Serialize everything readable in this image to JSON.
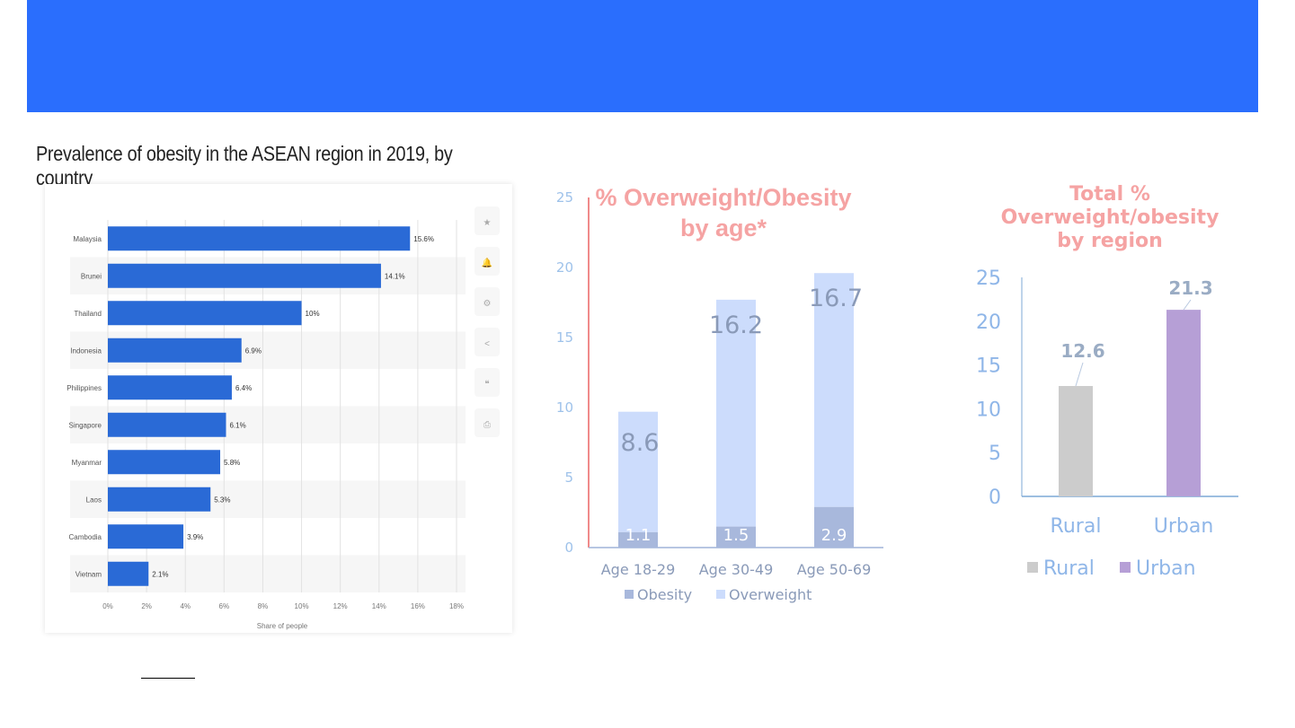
{
  "colors": {
    "banner": "#2a6efd",
    "c1_bar": "#2a6ad6",
    "c2_obesity": "#a8b8dc",
    "c2_overweight": "#ccdcfc",
    "c2_axis": "#f08a8a",
    "c2_tick": "#9ec2ea",
    "c3_rural": "#cccccc",
    "c3_urban": "#b69fd6",
    "title_pink": "#f5a3a3"
  },
  "chart_data": [
    {
      "type": "bar",
      "orientation": "horizontal",
      "title": "Prevalence of obesity in the ASEAN region in 2019, by country",
      "categories": [
        "Malaysia",
        "Brunei",
        "Thailand",
        "Indonesia",
        "Philippines",
        "Singapore",
        "Myanmar",
        "Laos",
        "Cambodia",
        "Vietnam"
      ],
      "values": [
        15.6,
        14.1,
        10,
        6.9,
        6.4,
        6.1,
        5.8,
        5.3,
        3.9,
        2.1
      ],
      "value_labels": [
        "15.6%",
        "14.1%",
        "10%",
        "6.9%",
        "6.4%",
        "6.1%",
        "5.8%",
        "5.3%",
        "3.9%",
        "2.1%"
      ],
      "xlim": [
        0,
        18
      ],
      "xticks": [
        "0%",
        "2%",
        "4%",
        "6%",
        "8%",
        "10%",
        "12%",
        "14%",
        "16%",
        "18%"
      ],
      "xlabel": "Share of people",
      "ylabel": "",
      "grid": true,
      "side_icons": [
        "star-icon",
        "bell-icon",
        "gear-icon",
        "share-icon",
        "quote-icon",
        "print-icon"
      ]
    },
    {
      "type": "bar",
      "stacked": true,
      "title": "% Overweight/Obesity\nby age*",
      "categories": [
        "Age 18-29",
        "Age 30-49",
        "Age 50-69"
      ],
      "series": [
        {
          "name": "Obesity",
          "values": [
            1.1,
            1.5,
            2.9
          ],
          "labels": [
            "1.1",
            "1.5",
            "2.9"
          ]
        },
        {
          "name": "Overweight",
          "values": [
            8.6,
            16.2,
            16.7
          ],
          "labels": [
            "8.6",
            "16.2",
            "16.7"
          ]
        }
      ],
      "ylim": [
        0,
        25
      ],
      "yticks": [
        "0",
        "5",
        "10",
        "15",
        "20",
        "25"
      ],
      "xlabel": "",
      "ylabel": "",
      "legend": "bottom",
      "grid": false
    },
    {
      "type": "bar",
      "title": "Total %\nOverweight/obesity\nby region",
      "categories": [
        "Rural",
        "Urban"
      ],
      "values": [
        12.6,
        21.3
      ],
      "value_labels": [
        "12.6",
        "21.3"
      ],
      "ylim": [
        0,
        25
      ],
      "yticks": [
        "0",
        "5",
        "10",
        "15",
        "20",
        "25"
      ],
      "legend_entries": [
        "Rural",
        "Urban"
      ],
      "legend": "bottom",
      "grid": false
    }
  ]
}
